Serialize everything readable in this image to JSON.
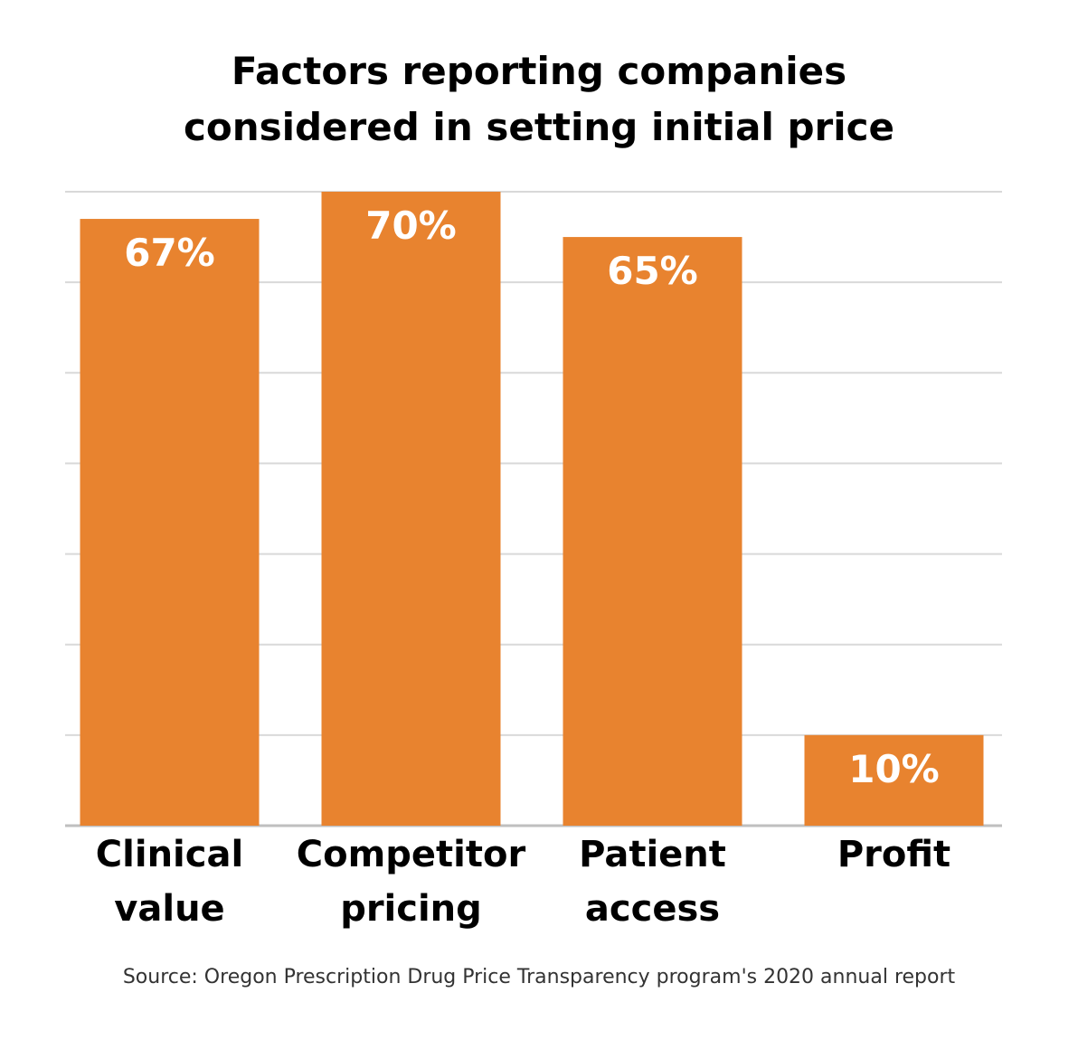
{
  "title_lines": [
    "Factors reporting companies",
    "considered in setting initial price"
  ],
  "source": "Source: Oregon Prescription Drug Price Transparency program's 2020 annual report",
  "colors": {
    "bar": "#e8832f",
    "grid": "#d9d9d9",
    "axis": "#bfbfbf",
    "label_on_bar": "#ffffff",
    "category_label": "#000000"
  },
  "chart_data": {
    "type": "bar",
    "title": "Factors reporting companies considered in setting initial price",
    "categories": [
      [
        "Clinical",
        "value"
      ],
      [
        "Competitor",
        "pricing"
      ],
      [
        "Patient",
        "access"
      ],
      [
        "Profit"
      ]
    ],
    "values": [
      67,
      70,
      65,
      10
    ],
    "value_labels": [
      "67%",
      "70%",
      "65%",
      "10%"
    ],
    "ylim": [
      0,
      70
    ],
    "grid": true,
    "xlabel": "",
    "ylabel": ""
  }
}
